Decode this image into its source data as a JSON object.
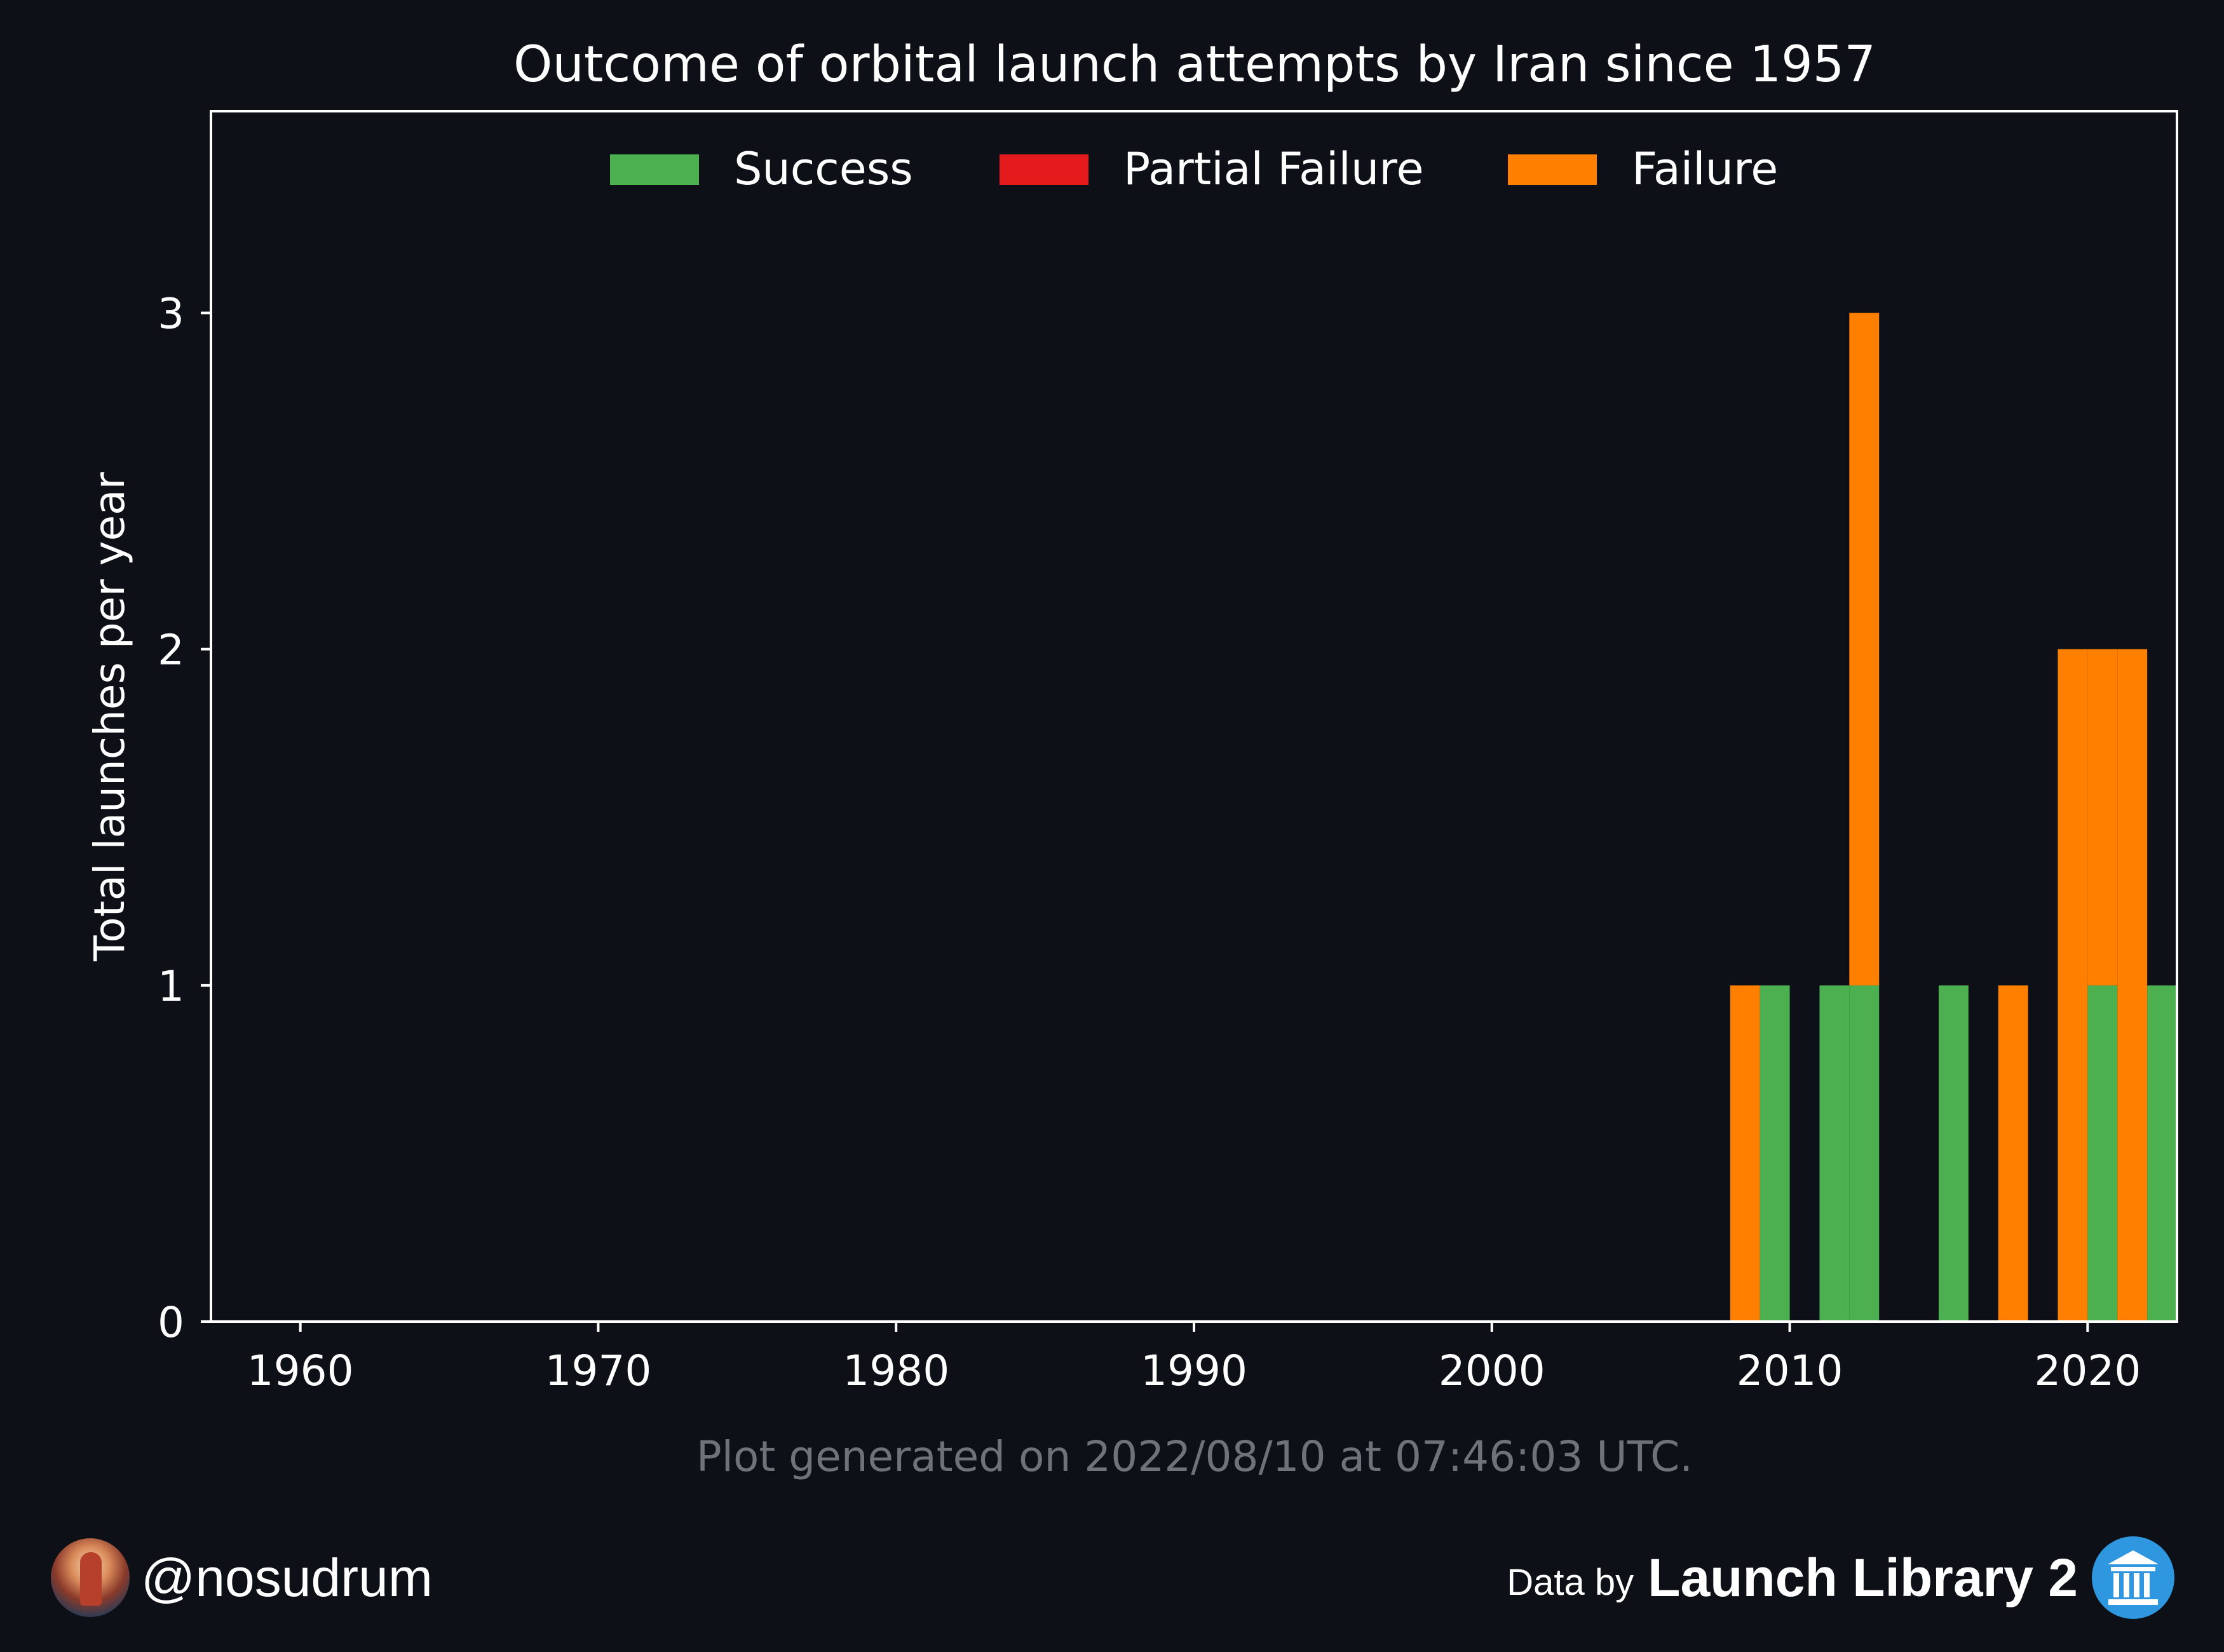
{
  "chart_data": {
    "type": "bar",
    "stacked": true,
    "title": "Outcome of orbital launch attempts by Iran since 1957",
    "xlabel": "",
    "ylabel": "Total launches per year",
    "x_ticks": [
      "1960",
      "1970",
      "1980",
      "1990",
      "2000",
      "2010",
      "2020"
    ],
    "y_ticks": [
      "0",
      "1",
      "2",
      "3"
    ],
    "xlim": [
      1957,
      2023
    ],
    "ylim": [
      0,
      3.6
    ],
    "grid": false,
    "legend_position": "top",
    "years": [
      2008,
      2009,
      2011,
      2012,
      2015,
      2017,
      2019,
      2020,
      2021,
      2022
    ],
    "series": [
      {
        "name": "Success",
        "color": "#4caf50",
        "values": [
          0,
          1,
          1,
          1,
          1,
          0,
          0,
          1,
          0,
          1
        ]
      },
      {
        "name": "Partial Failure",
        "color": "#e41a1c",
        "values": [
          0,
          0,
          0,
          0,
          0,
          0,
          0,
          0,
          0,
          0
        ]
      },
      {
        "name": "Failure",
        "color": "#ff7f00",
        "values": [
          1,
          0,
          0,
          2,
          0,
          1,
          2,
          1,
          2,
          0
        ]
      }
    ]
  },
  "footer": {
    "generated_note": "Plot generated on 2022/08/10 at 07:46:03 UTC.",
    "handle": "@nosudrum",
    "credit_prefix": "Data by",
    "credit_brand": "Launch Library 2",
    "credit_logo_icon": "columns-building-icon",
    "avatar_icon": "astronaut-avatar-icon"
  }
}
